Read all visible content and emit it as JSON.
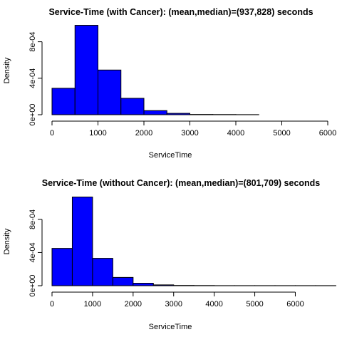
{
  "chart_data": [
    {
      "type": "bar",
      "title": "Service-Time (with Cancer): (mean,median)=(937,828) seconds",
      "xlabel": "ServiceTime",
      "ylabel": "Density",
      "bin_edges": [
        0,
        500,
        1000,
        1500,
        2000,
        2500,
        3000,
        3500,
        4000,
        4500
      ],
      "values": [
        0.00029,
        0.00098,
        0.00049,
        0.00018,
        4.5e-05,
        1.5e-05,
        3e-06,
        2e-06,
        1e-06
      ],
      "xticks": [
        0,
        1000,
        2000,
        3000,
        4000,
        5000,
        6000
      ],
      "xtick_labels": [
        "0",
        "1000",
        "2000",
        "3000",
        "4000",
        "5000",
        "6000"
      ],
      "yticks": [
        0,
        0.0004,
        0.0008
      ],
      "ytick_labels": [
        "0e+00",
        "4e-04",
        "8e-04"
      ],
      "xlim": [
        0,
        6000
      ],
      "ylim": [
        0,
        0.001
      ],
      "bar_color": "#0000ff",
      "grid": false,
      "legend": "none"
    },
    {
      "type": "bar",
      "title": "Service-Time (without Cancer): (mean,median)=(801,709) seconds",
      "xlabel": "ServiceTime",
      "ylabel": "Density",
      "bin_edges": [
        0,
        500,
        1000,
        1500,
        2000,
        2500,
        3000,
        3500,
        4000,
        4500,
        5000,
        5500,
        6000,
        6500,
        7000
      ],
      "values": [
        0.00045,
        0.00107,
        0.00033,
        0.0001,
        3e-05,
        1e-05,
        3e-06,
        2e-06,
        1e-06,
        1e-06,
        1e-06,
        1e-06,
        1e-06,
        1e-06
      ],
      "xticks": [
        0,
        1000,
        2000,
        3000,
        4000,
        5000,
        6000
      ],
      "xtick_labels": [
        "0",
        "1000",
        "2000",
        "3000",
        "4000",
        "5000",
        "6000"
      ],
      "yticks": [
        0,
        0.0004,
        0.0008
      ],
      "ytick_labels": [
        "0e+00",
        "4e-04",
        "8e-04"
      ],
      "xlim": [
        0,
        6800
      ],
      "ylim": [
        0,
        0.0011
      ],
      "bar_color": "#0000ff",
      "grid": false,
      "legend": "none"
    }
  ]
}
